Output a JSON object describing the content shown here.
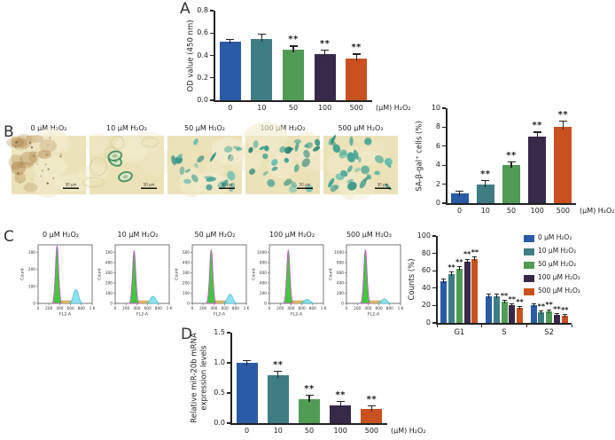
{
  "panels": {
    "a": "A",
    "b": "B",
    "c": "C",
    "d": "D"
  },
  "colors": {
    "series": [
      "#2a5ba6",
      "#3e7d84",
      "#509c54",
      "#372948",
      "#c8511f"
    ],
    "axis": "#222222",
    "hist_main_peak_fill": "#41c93e",
    "hist_main_peak_stroke": "#e03ae0",
    "hist_small_peak_fill": "#8ce1ef",
    "hist_small_peak_stroke": "#2fb3cc",
    "hist_debris_fill": "#ddb96e",
    "micro_background": "#ebe2b8",
    "micro_stain": "#2d9383",
    "micro_brown": "#a5763d"
  },
  "significance_symbol": "**",
  "chart_data": [
    {
      "id": "A",
      "type": "bar",
      "categories": [
        "0",
        "10",
        "50",
        "100",
        "500"
      ],
      "values": [
        0.52,
        0.55,
        0.45,
        0.41,
        0.37
      ],
      "errors": [
        0.02,
        0.04,
        0.03,
        0.035,
        0.04
      ],
      "significance": [
        "",
        "",
        "**",
        "**",
        "**"
      ],
      "ylabel": "OD value (450 nm)",
      "x_suffix": "(μM) H₂O₂",
      "ylim": [
        0,
        0.8
      ],
      "yticks": [
        "0.0",
        "0.2",
        "0.4",
        "0.6",
        "0.8"
      ]
    },
    {
      "id": "B",
      "type": "bar",
      "categories": [
        "0",
        "10",
        "50",
        "100",
        "500"
      ],
      "values": [
        1.0,
        2.0,
        4.0,
        7.0,
        8.0
      ],
      "errors": [
        0.2,
        0.35,
        0.3,
        0.45,
        0.6
      ],
      "significance": [
        "",
        "**",
        "**",
        "**",
        "**"
      ],
      "ylabel": "SA-β-gal⁺ cells (%)",
      "x_suffix": "(μM) H₂O₂",
      "ylim": [
        0,
        10
      ],
      "yticks": [
        "0",
        "2",
        "4",
        "6",
        "8",
        "10"
      ]
    },
    {
      "id": "C-flow",
      "type": "flow-histogram-row",
      "xlabel": "FL2-A",
      "ylabel": "Count",
      "xticks": [
        "0",
        "200",
        "400",
        "600",
        "800",
        "1 K"
      ],
      "xmax": 1000,
      "plots": [
        {
          "title": "0 μM H₂O₂",
          "yticks": [
            0,
            100,
            200,
            300
          ],
          "ytick_max": 300,
          "g1_peak": {
            "x": 350,
            "count": 340
          },
          "g2_peak": {
            "x": 700,
            "count": 80
          }
        },
        {
          "title": "10 μM H₂O₂",
          "yticks": [
            0,
            100,
            200,
            300,
            400,
            500
          ],
          "ytick_max": 500,
          "g1_peak": {
            "x": 350,
            "count": 520
          },
          "g2_peak": {
            "x": 700,
            "count": 70
          }
        },
        {
          "title": "50 μM H₂O₂",
          "yticks": [
            0,
            100,
            200,
            300,
            400,
            500
          ],
          "ytick_max": 500,
          "g1_peak": {
            "x": 350,
            "count": 530
          },
          "g2_peak": {
            "x": 700,
            "count": 90
          }
        },
        {
          "title": "100 μM H₂O₂",
          "yticks": [
            0,
            200,
            400,
            600,
            800,
            1000
          ],
          "ytick_max": 1000,
          "g1_peak": {
            "x": 350,
            "count": 1050
          },
          "g2_peak": {
            "x": 700,
            "count": 80
          }
        },
        {
          "title": "500 μM H₂O₂",
          "yticks": [
            0,
            200,
            400,
            600,
            800,
            1000
          ],
          "ytick_max": 1000,
          "g1_peak": {
            "x": 350,
            "count": 1060
          },
          "g2_peak": {
            "x": 700,
            "count": 90
          }
        }
      ]
    },
    {
      "id": "C-bars",
      "type": "grouped-bar",
      "categories": [
        "G1",
        "S",
        "S2"
      ],
      "series": [
        {
          "name": "0 μM H₂O₂",
          "values": [
            48,
            31,
            20
          ],
          "errors": [
            2,
            2,
            1.5
          ],
          "significance": [
            "",
            "",
            ""
          ]
        },
        {
          "name": "10 μM H₂O₂",
          "values": [
            56,
            31,
            12
          ],
          "errors": [
            2,
            1.5,
            1.5
          ],
          "significance": [
            "**",
            "",
            "**"
          ]
        },
        {
          "name": "50 μM H₂O₂",
          "values": [
            62,
            24,
            13
          ],
          "errors": [
            2,
            2,
            2
          ],
          "significance": [
            "**",
            "**",
            "**"
          ]
        },
        {
          "name": "100 μM H₂O₂",
          "values": [
            70,
            20,
            9
          ],
          "errors": [
            3,
            1.5,
            1.5
          ],
          "significance": [
            "**",
            "**",
            "**"
          ]
        },
        {
          "name": "500 μM H₂O₂",
          "values": [
            73,
            17,
            8
          ],
          "errors": [
            3,
            1.5,
            1.5
          ],
          "significance": [
            "**",
            "**",
            "**"
          ]
        }
      ],
      "ylabel": "Counts (%)",
      "ylim": [
        0,
        100
      ],
      "yticks": [
        "0",
        "20",
        "40",
        "60",
        "80",
        "100"
      ],
      "legend_position": "top-right"
    },
    {
      "id": "D",
      "type": "bar",
      "categories": [
        "0",
        "10",
        "50",
        "100",
        "500"
      ],
      "values": [
        1.0,
        0.8,
        0.4,
        0.3,
        0.24
      ],
      "errors": [
        0.03,
        0.05,
        0.06,
        0.05,
        0.04
      ],
      "significance": [
        "",
        "**",
        "**",
        "**",
        "**"
      ],
      "ylabel": "Relative miR-20b mRNA\nexpression levels",
      "x_suffix": "(μM) H₂O₂",
      "ylim": [
        0,
        1.5
      ],
      "yticks": [
        "0.0",
        "0.5",
        "1.0",
        "1.5"
      ]
    }
  ],
  "microscopy": {
    "scale_bar_label": "50 μm",
    "images": [
      {
        "label": "0 μM H₂O₂",
        "appearance": "unstained-brown",
        "blob_count": 0,
        "seed": 11
      },
      {
        "label": "10 μM H₂O₂",
        "appearance": "few-stained",
        "blob_count": 3,
        "seed": 22
      },
      {
        "label": "50 μM H₂O₂",
        "appearance": "stained",
        "blob_count": 22,
        "seed": 33
      },
      {
        "label": "100 μM H₂O₂",
        "appearance": "stained",
        "blob_count": 27,
        "seed": 44
      },
      {
        "label": "500 μM H₂O₂",
        "appearance": "stained",
        "blob_count": 31,
        "seed": 55
      }
    ]
  }
}
